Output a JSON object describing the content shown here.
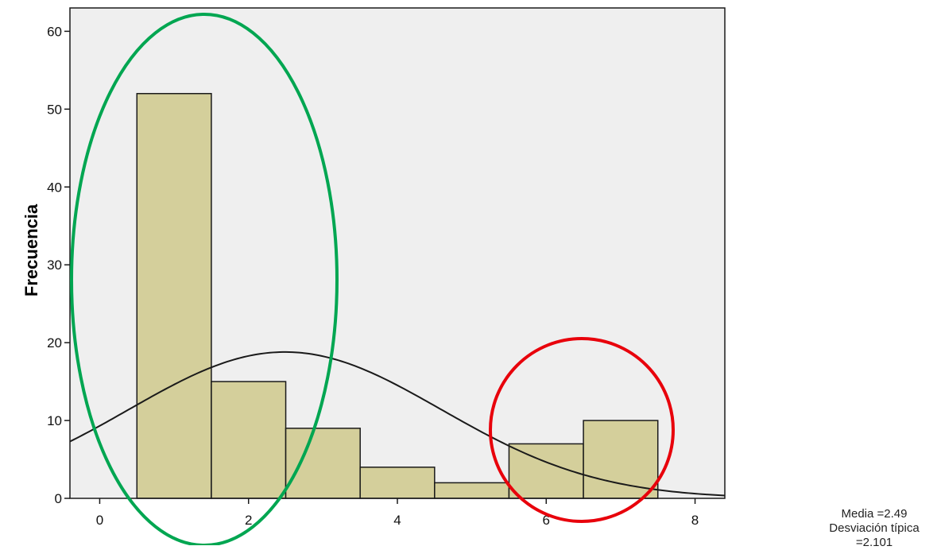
{
  "chart_data": {
    "type": "bar",
    "ylabel": "Frecuencia",
    "xlabel": "",
    "bin_width": 1,
    "bins": [
      {
        "x_start": 0.5,
        "x_end": 1.5,
        "value": 52
      },
      {
        "x_start": 1.5,
        "x_end": 2.5,
        "value": 15
      },
      {
        "x_start": 2.5,
        "x_end": 3.5,
        "value": 9
      },
      {
        "x_start": 3.5,
        "x_end": 4.5,
        "value": 4
      },
      {
        "x_start": 4.5,
        "x_end": 5.5,
        "value": 2
      },
      {
        "x_start": 5.5,
        "x_end": 6.5,
        "value": 7
      },
      {
        "x_start": 6.5,
        "x_end": 7.5,
        "value": 10
      }
    ],
    "xlim": [
      -0.4,
      8.4
    ],
    "ylim": [
      0,
      63
    ],
    "x_ticks": [
      0,
      2,
      4,
      6,
      8
    ],
    "y_ticks": [
      0,
      10,
      20,
      30,
      40,
      50,
      60
    ],
    "normal_curve": {
      "mean": 2.49,
      "sd": 2.101,
      "n": 99
    },
    "stats": {
      "mean_label": "Media =2.49",
      "sd_label": "Desviación típica =2.101"
    },
    "colors": {
      "plot_background": "#efefef",
      "bar_fill": "#d4cf9b",
      "bar_stroke": "#1a1a1a",
      "curve": "#1a1a1a",
      "ellipse_green": "#00a651",
      "circle_red": "#e8000b"
    },
    "annotations": [
      {
        "shape": "ellipse",
        "color": "green",
        "around": "bins 1-3"
      },
      {
        "shape": "circle",
        "color": "red",
        "around": "bins 6-7"
      }
    ]
  }
}
